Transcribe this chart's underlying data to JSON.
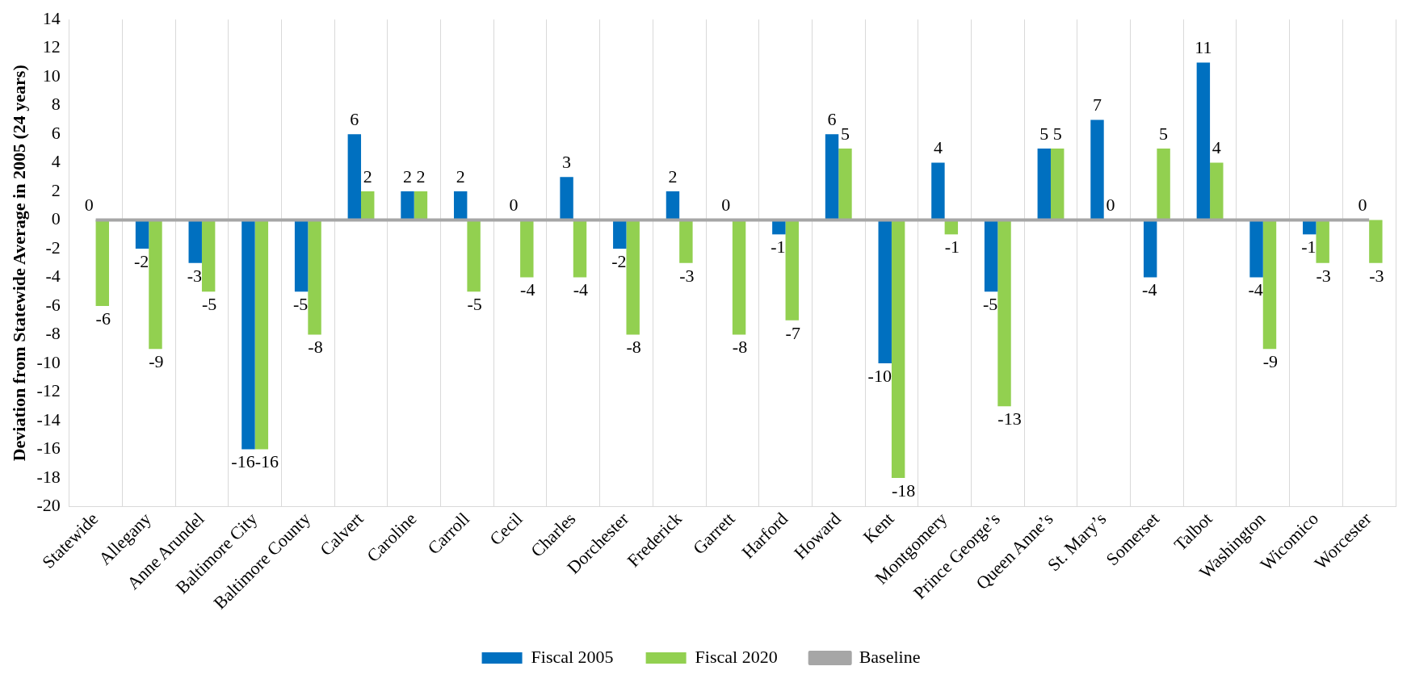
{
  "chart_data": {
    "type": "bar",
    "ylabel": "Deviation from Statewide Average in 2005 (24 years)",
    "categories": [
      "Statewide",
      "Allegany",
      "Anne Arundel",
      "Baltimore City",
      "Baltimore County",
      "Calvert",
      "Caroline",
      "Carroll",
      "Cecil",
      "Charles",
      "Dorchester",
      "Frederick",
      "Garrett",
      "Harford",
      "Howard",
      "Kent",
      "Montgomery",
      "Prince George’s",
      "Queen Anne’s",
      "St. Mary’s",
      "Somerset",
      "Talbot",
      "Washington",
      "Wicomico",
      "Worcester"
    ],
    "series": [
      {
        "name": "Fiscal 2005",
        "color": "#0070c0",
        "values": [
          0,
          -2,
          -3,
          -16,
          -5,
          6,
          2,
          2,
          0,
          3,
          -2,
          2,
          0,
          -1,
          6,
          -10,
          4,
          -5,
          5,
          7,
          -4,
          11,
          -4,
          -1,
          0
        ],
        "value_labels": [
          "0",
          "-2",
          "-3",
          "-16",
          "-5",
          "6",
          "2",
          "2",
          "0",
          "3",
          "-2",
          "2",
          "0",
          "-1",
          "6",
          "-10",
          "4",
          "-5",
          "5",
          "7",
          "-4",
          "11",
          "-4",
          "-1",
          "0"
        ]
      },
      {
        "name": "Fiscal 2020",
        "color": "#92d050",
        "values": [
          -6,
          -9,
          -5,
          -16,
          -8,
          2,
          2,
          -5,
          -4,
          -4,
          -8,
          -3,
          -8,
          -7,
          5,
          -18,
          -1,
          -13,
          5,
          0,
          5,
          4,
          -9,
          -3,
          -3
        ],
        "value_labels": [
          "-6",
          "-9",
          "-5",
          "-16",
          "-8",
          "2",
          "2",
          "-5",
          "-4",
          "-4",
          "-8",
          "-3",
          "-8",
          "-7",
          "5",
          "-18",
          "-1",
          "-13",
          "5",
          "0",
          "5",
          "4",
          "-9",
          "-3",
          "-3"
        ]
      },
      {
        "name": "Baseline",
        "type": "line",
        "color": "#a6a6a6",
        "values": [
          0,
          0,
          0,
          0,
          0,
          0,
          0,
          0,
          0,
          0,
          0,
          0,
          0,
          0,
          0,
          0,
          0,
          0,
          0,
          0,
          0,
          0,
          0,
          0,
          0
        ]
      }
    ],
    "ylim": [
      -20,
      14
    ],
    "yticks": [
      -20,
      -18,
      -16,
      -14,
      -12,
      -10,
      -8,
      -6,
      -4,
      -2,
      0,
      2,
      4,
      6,
      8,
      10,
      12,
      14
    ],
    "grid": "x",
    "legend": "bottom"
  }
}
